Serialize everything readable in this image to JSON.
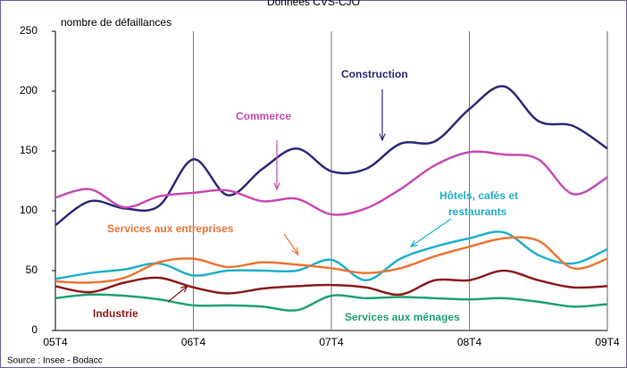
{
  "chart_data": {
    "type": "line",
    "title": "Données CVS-CJO",
    "y_label": "nombre de défaillances",
    "source": "Source : Insee - Bodacc",
    "categories": [
      "05T4",
      null,
      null,
      null,
      "06T4",
      null,
      null,
      null,
      "07T4",
      null,
      null,
      null,
      "08T4",
      null,
      null,
      null,
      "09T4"
    ],
    "ylim": [
      0,
      250
    ],
    "yticks": [
      0,
      50,
      100,
      150,
      200,
      250
    ],
    "grid": "x",
    "series": [
      {
        "name": "Construction",
        "color": "#2e2a7a",
        "values": [
          88,
          108,
          102,
          104,
          143,
          113,
          135,
          152,
          133,
          135,
          156,
          158,
          185,
          204,
          175,
          171,
          152
        ]
      },
      {
        "name": "Commerce",
        "color": "#c84cb4",
        "values": [
          111,
          118,
          103,
          112,
          115,
          117,
          108,
          110,
          97,
          102,
          118,
          138,
          149,
          147,
          143,
          114,
          128
        ]
      },
      {
        "name": "Hôtels, cafés et restaurants",
        "color": "#22b0cc",
        "values": [
          43,
          48,
          51,
          56,
          46,
          50,
          50,
          50,
          59,
          42,
          60,
          70,
          77,
          82,
          63,
          56,
          68
        ]
      },
      {
        "name": "Services aux entreprises",
        "color": "#ec7634",
        "values": [
          41,
          40,
          44,
          57,
          60,
          53,
          57,
          55,
          52,
          48,
          52,
          62,
          70,
          77,
          75,
          52,
          60
        ]
      },
      {
        "name": "Industrie",
        "color": "#8e1c1c",
        "values": [
          37,
          32,
          40,
          44,
          36,
          31,
          35,
          37,
          38,
          36,
          30,
          42,
          42,
          50,
          42,
          36,
          37
        ]
      },
      {
        "name": "Services aux ménages",
        "color": "#22a274",
        "values": [
          27,
          30,
          29,
          26,
          21,
          21,
          20,
          17,
          29,
          27,
          28,
          27,
          26,
          27,
          24,
          20,
          22
        ]
      }
    ]
  }
}
